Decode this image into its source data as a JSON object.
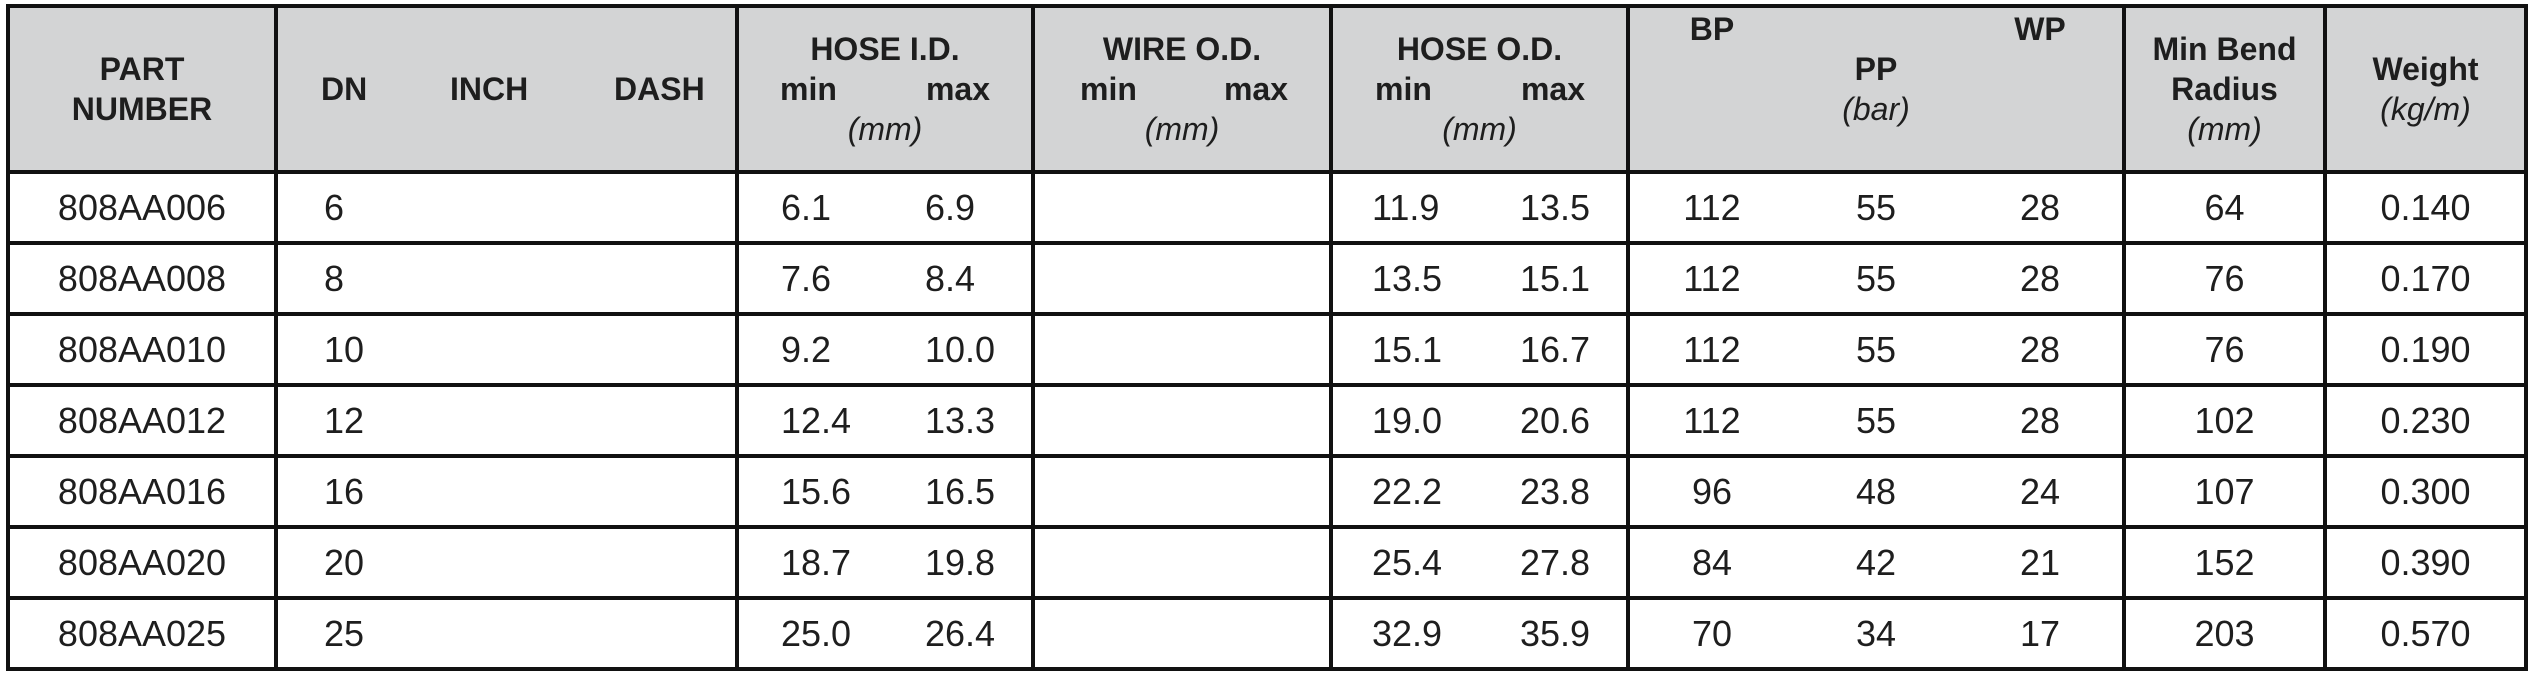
{
  "header": {
    "part_number": [
      "PART",
      "NUMBER"
    ],
    "dn": "DN",
    "inch": "INCH",
    "dash": "DASH",
    "hose_id": "HOSE I.D.",
    "wire_od": "WIRE O.D.",
    "hose_od": "HOSE O.D.",
    "min": "min",
    "max": "max",
    "mm": "(mm)",
    "bp": "BP",
    "pp": "PP",
    "wp": "WP",
    "bar": "(bar)",
    "min_bend_radius": [
      "Min Bend",
      "Radius"
    ],
    "weight": "Weight",
    "kgm": "(kg/m)"
  },
  "rows": [
    {
      "part": "808AA006",
      "dn": "6",
      "inch": "",
      "dash": "",
      "id_min": "6.1",
      "id_max": "6.9",
      "wire_min": "",
      "wire_max": "",
      "od_min": "11.9",
      "od_max": "13.5",
      "bp": "112",
      "pp": "55",
      "wp": "28",
      "bend": "64",
      "weight": "0.140"
    },
    {
      "part": "808AA008",
      "dn": "8",
      "inch": "",
      "dash": "",
      "id_min": "7.6",
      "id_max": "8.4",
      "wire_min": "",
      "wire_max": "",
      "od_min": "13.5",
      "od_max": "15.1",
      "bp": "112",
      "pp": "55",
      "wp": "28",
      "bend": "76",
      "weight": "0.170"
    },
    {
      "part": "808AA010",
      "dn": "10",
      "inch": "",
      "dash": "",
      "id_min": "9.2",
      "id_max": "10.0",
      "wire_min": "",
      "wire_max": "",
      "od_min": "15.1",
      "od_max": "16.7",
      "bp": "112",
      "pp": "55",
      "wp": "28",
      "bend": "76",
      "weight": "0.190"
    },
    {
      "part": "808AA012",
      "dn": "12",
      "inch": "",
      "dash": "",
      "id_min": "12.4",
      "id_max": "13.3",
      "wire_min": "",
      "wire_max": "",
      "od_min": "19.0",
      "od_max": "20.6",
      "bp": "112",
      "pp": "55",
      "wp": "28",
      "bend": "102",
      "weight": "0.230"
    },
    {
      "part": "808AA016",
      "dn": "16",
      "inch": "",
      "dash": "",
      "id_min": "15.6",
      "id_max": "16.5",
      "wire_min": "",
      "wire_max": "",
      "od_min": "22.2",
      "od_max": "23.8",
      "bp": "96",
      "pp": "48",
      "wp": "24",
      "bend": "107",
      "weight": "0.300"
    },
    {
      "part": "808AA020",
      "dn": "20",
      "inch": "",
      "dash": "",
      "id_min": "18.7",
      "id_max": "19.8",
      "wire_min": "",
      "wire_max": "",
      "od_min": "25.4",
      "od_max": "27.8",
      "bp": "84",
      "pp": "42",
      "wp": "21",
      "bend": "152",
      "weight": "0.390"
    },
    {
      "part": "808AA025",
      "dn": "25",
      "inch": "",
      "dash": "",
      "id_min": "25.0",
      "id_max": "26.4",
      "wire_min": "",
      "wire_max": "",
      "od_min": "32.9",
      "od_max": "35.9",
      "bp": "70",
      "pp": "34",
      "wp": "17",
      "bend": "203",
      "weight": "0.570"
    }
  ]
}
